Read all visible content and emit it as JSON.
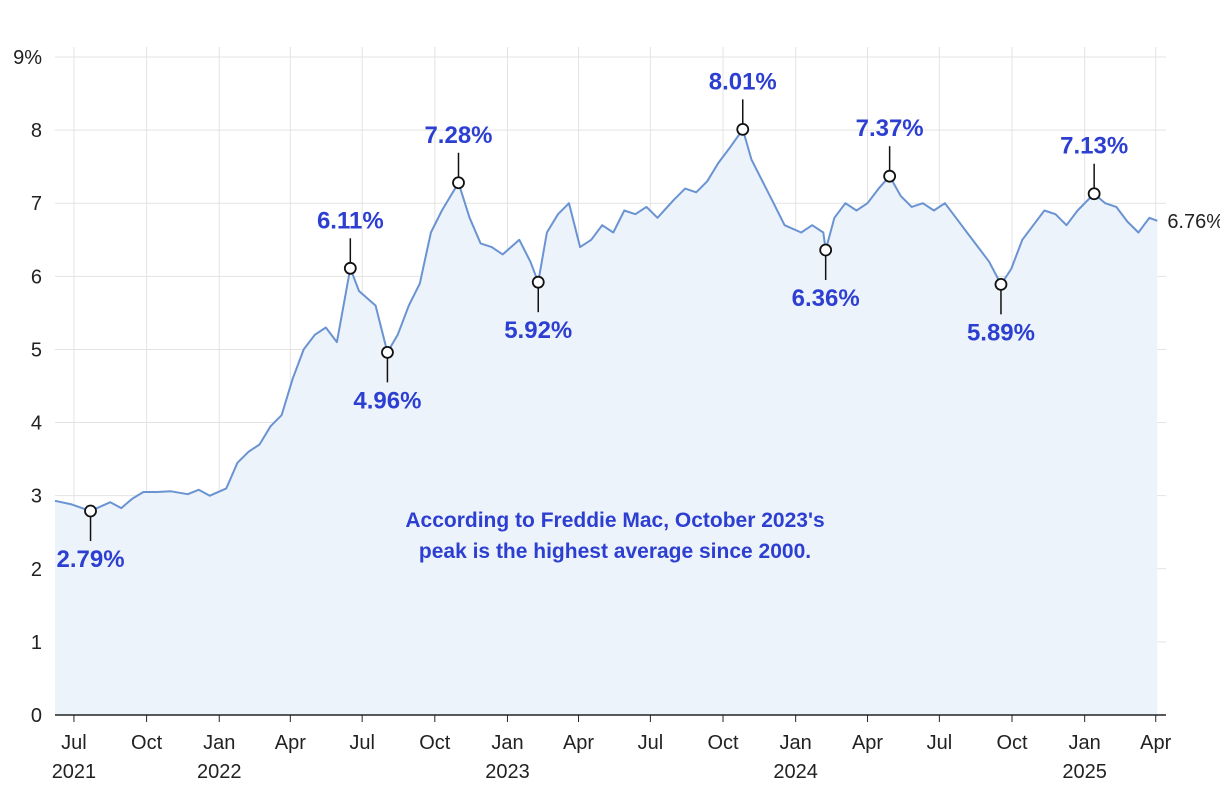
{
  "chart_data": {
    "type": "area",
    "title": "",
    "xlabel": "",
    "ylabel": "",
    "y_unit": "%",
    "ylim": [
      0,
      9
    ],
    "xlim": [
      "2021-06-07",
      "2025-04-14"
    ],
    "grid": true,
    "y_ticks": [
      {
        "value": 0,
        "label": "0"
      },
      {
        "value": 1,
        "label": "1"
      },
      {
        "value": 2,
        "label": "2"
      },
      {
        "value": 3,
        "label": "3"
      },
      {
        "value": 4,
        "label": "4"
      },
      {
        "value": 5,
        "label": "5"
      },
      {
        "value": 6,
        "label": "6"
      },
      {
        "value": 7,
        "label": "7"
      },
      {
        "value": 8,
        "label": "8"
      },
      {
        "value": 9,
        "label": "9%"
      }
    ],
    "x_ticks": [
      {
        "date": "2021-07-01",
        "label": "Jul",
        "year": "2021"
      },
      {
        "date": "2021-10-01",
        "label": "Oct",
        "year": ""
      },
      {
        "date": "2022-01-01",
        "label": "Jan",
        "year": "2022"
      },
      {
        "date": "2022-04-01",
        "label": "Apr",
        "year": ""
      },
      {
        "date": "2022-07-01",
        "label": "Jul",
        "year": ""
      },
      {
        "date": "2022-10-01",
        "label": "Oct",
        "year": ""
      },
      {
        "date": "2023-01-01",
        "label": "Jan",
        "year": "2023"
      },
      {
        "date": "2023-04-01",
        "label": "Apr",
        "year": ""
      },
      {
        "date": "2023-07-01",
        "label": "Jul",
        "year": ""
      },
      {
        "date": "2023-10-01",
        "label": "Oct",
        "year": ""
      },
      {
        "date": "2024-01-01",
        "label": "Jan",
        "year": "2024"
      },
      {
        "date": "2024-04-01",
        "label": "Apr",
        "year": ""
      },
      {
        "date": "2024-07-01",
        "label": "Jul",
        "year": ""
      },
      {
        "date": "2024-10-01",
        "label": "Oct",
        "year": ""
      },
      {
        "date": "2025-01-01",
        "label": "Jan",
        "year": "2025"
      },
      {
        "date": "2025-04-01",
        "label": "Apr",
        "year": ""
      }
    ],
    "series": [
      {
        "values": [
          [
            "2021-06-07",
            2.93
          ],
          [
            "2021-06-28",
            2.88
          ],
          [
            "2021-07-22",
            2.79
          ],
          [
            "2021-08-16",
            2.91
          ],
          [
            "2021-08-30",
            2.83
          ],
          [
            "2021-09-13",
            2.96
          ],
          [
            "2021-09-27",
            3.05
          ],
          [
            "2021-10-14",
            3.05
          ],
          [
            "2021-11-01",
            3.06
          ],
          [
            "2021-11-22",
            3.02
          ],
          [
            "2021-12-06",
            3.08
          ],
          [
            "2021-12-20",
            3.0
          ],
          [
            "2022-01-10",
            3.1
          ],
          [
            "2022-01-24",
            3.45
          ],
          [
            "2022-02-07",
            3.6
          ],
          [
            "2022-02-21",
            3.7
          ],
          [
            "2022-03-07",
            3.95
          ],
          [
            "2022-03-21",
            4.1
          ],
          [
            "2022-04-04",
            4.6
          ],
          [
            "2022-04-18",
            5.0
          ],
          [
            "2022-05-02",
            5.2
          ],
          [
            "2022-05-16",
            5.3
          ],
          [
            "2022-05-30",
            5.1
          ],
          [
            "2022-06-16",
            6.11
          ],
          [
            "2022-06-27",
            5.8
          ],
          [
            "2022-07-18",
            5.6
          ],
          [
            "2022-08-02",
            4.96
          ],
          [
            "2022-08-15",
            5.2
          ],
          [
            "2022-08-29",
            5.6
          ],
          [
            "2022-09-12",
            5.9
          ],
          [
            "2022-09-26",
            6.6
          ],
          [
            "2022-10-10",
            6.9
          ],
          [
            "2022-10-31",
            7.28
          ],
          [
            "2022-11-14",
            6.8
          ],
          [
            "2022-11-28",
            6.45
          ],
          [
            "2022-12-12",
            6.4
          ],
          [
            "2022-12-26",
            6.3
          ],
          [
            "2023-01-16",
            6.5
          ],
          [
            "2023-01-30",
            6.2
          ],
          [
            "2023-02-09",
            5.92
          ],
          [
            "2023-02-20",
            6.6
          ],
          [
            "2023-03-06",
            6.85
          ],
          [
            "2023-03-20",
            7.0
          ],
          [
            "2023-04-03",
            6.4
          ],
          [
            "2023-04-17",
            6.5
          ],
          [
            "2023-05-01",
            6.7
          ],
          [
            "2023-05-15",
            6.6
          ],
          [
            "2023-05-29",
            6.9
          ],
          [
            "2023-06-12",
            6.85
          ],
          [
            "2023-06-26",
            6.95
          ],
          [
            "2023-07-10",
            6.8
          ],
          [
            "2023-07-31",
            7.05
          ],
          [
            "2023-08-14",
            7.2
          ],
          [
            "2023-08-28",
            7.15
          ],
          [
            "2023-09-11",
            7.3
          ],
          [
            "2023-09-25",
            7.55
          ],
          [
            "2023-10-09",
            7.75
          ],
          [
            "2023-10-26",
            8.01
          ],
          [
            "2023-11-06",
            7.6
          ],
          [
            "2023-11-20",
            7.3
          ],
          [
            "2023-12-04",
            7.0
          ],
          [
            "2023-12-18",
            6.7
          ],
          [
            "2024-01-08",
            6.6
          ],
          [
            "2024-01-22",
            6.7
          ],
          [
            "2024-02-05",
            6.6
          ],
          [
            "2024-02-08",
            6.36
          ],
          [
            "2024-02-19",
            6.8
          ],
          [
            "2024-03-04",
            7.0
          ],
          [
            "2024-03-18",
            6.9
          ],
          [
            "2024-04-01",
            7.0
          ],
          [
            "2024-04-15",
            7.2
          ],
          [
            "2024-04-29",
            7.37
          ],
          [
            "2024-05-13",
            7.1
          ],
          [
            "2024-05-27",
            6.95
          ],
          [
            "2024-06-10",
            7.0
          ],
          [
            "2024-06-24",
            6.9
          ],
          [
            "2024-07-08",
            7.0
          ],
          [
            "2024-07-22",
            6.8
          ],
          [
            "2024-08-05",
            6.6
          ],
          [
            "2024-08-19",
            6.4
          ],
          [
            "2024-09-02",
            6.2
          ],
          [
            "2024-09-17",
            5.89
          ],
          [
            "2024-09-30",
            6.1
          ],
          [
            "2024-10-14",
            6.5
          ],
          [
            "2024-10-28",
            6.7
          ],
          [
            "2024-11-11",
            6.9
          ],
          [
            "2024-11-25",
            6.85
          ],
          [
            "2024-12-09",
            6.7
          ],
          [
            "2024-12-23",
            6.9
          ],
          [
            "2025-01-13",
            7.13
          ],
          [
            "2025-01-27",
            7.0
          ],
          [
            "2025-02-10",
            6.95
          ],
          [
            "2025-02-24",
            6.75
          ],
          [
            "2025-03-10",
            6.6
          ],
          [
            "2025-03-24",
            6.8
          ],
          [
            "2025-04-03",
            6.76
          ]
        ],
        "line_color": "#6a93d2",
        "fill_color": "#edf3fb"
      }
    ],
    "annotations": [
      {
        "date": "2021-07-22",
        "value": 2.79,
        "label": "2.79%",
        "side": "below"
      },
      {
        "date": "2022-06-16",
        "value": 6.11,
        "label": "6.11%",
        "side": "above"
      },
      {
        "date": "2022-08-02",
        "value": 4.96,
        "label": "4.96%",
        "side": "below"
      },
      {
        "date": "2022-10-31",
        "value": 7.28,
        "label": "7.28%",
        "side": "above"
      },
      {
        "date": "2023-02-09",
        "value": 5.92,
        "label": "5.92%",
        "side": "below"
      },
      {
        "date": "2023-10-26",
        "value": 8.01,
        "label": "8.01%",
        "side": "above"
      },
      {
        "date": "2024-02-08",
        "value": 6.36,
        "label": "6.36%",
        "side": "below"
      },
      {
        "date": "2024-04-29",
        "value": 7.37,
        "label": "7.37%",
        "side": "above"
      },
      {
        "date": "2024-09-17",
        "value": 5.89,
        "label": "5.89%",
        "side": "below"
      },
      {
        "date": "2025-01-13",
        "value": 7.13,
        "label": "7.13%",
        "side": "above"
      }
    ],
    "last_value_label": "6.76%",
    "note": [
      "According to Freddie Mac, October 2023's",
      "peak is the highest average since 2000."
    ],
    "colors": {
      "accent": "#2d3fd1",
      "line": "#6a93d2",
      "area": "#edf3fb",
      "grid": "#e3e3e3",
      "axis": "#222222"
    }
  }
}
